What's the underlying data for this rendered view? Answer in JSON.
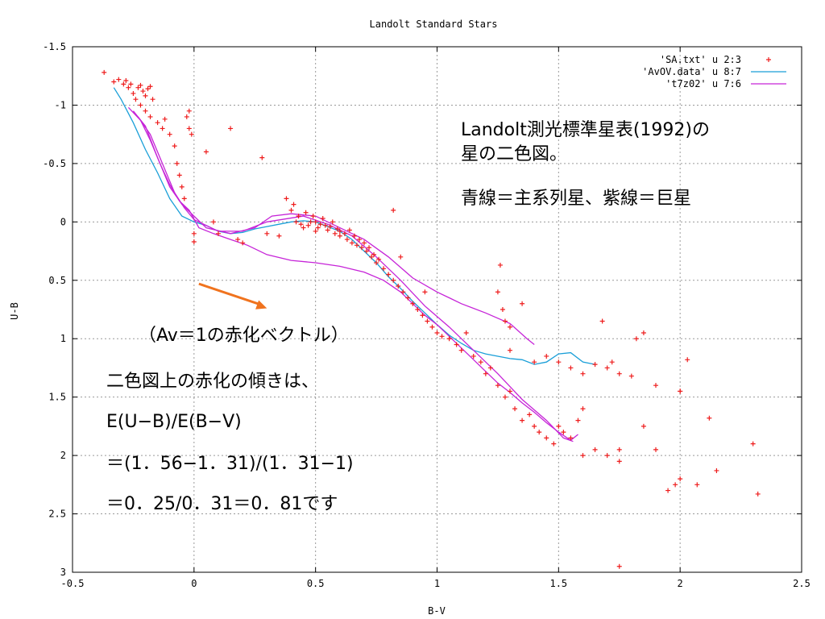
{
  "chart_data": {
    "type": "scatter",
    "title": "Landolt Standard Stars",
    "xlabel": "B-V",
    "ylabel": "U-B",
    "xlim": [
      -0.5,
      2.5
    ],
    "ylim": [
      3,
      -1.5
    ],
    "y_inverted": true,
    "xticks": [
      -0.5,
      0,
      0.5,
      1,
      1.5,
      2,
      2.5
    ],
    "yticks": [
      -1.5,
      -1,
      -0.5,
      0,
      0.5,
      1,
      1.5,
      2,
      2.5,
      3
    ],
    "xtick_labels": [
      "-0.5",
      "0",
      "0.5",
      "1",
      "1.5",
      "2",
      "2.5"
    ],
    "ytick_labels": [
      "-1.5",
      "-1",
      "-0.5",
      "0",
      "0.5",
      "1",
      "1.5",
      "2",
      "2.5",
      "3"
    ],
    "grid": true,
    "legend_position": "top-right",
    "series": [
      {
        "name": "'SA.txt' u 2:3",
        "type": "scatter",
        "color": "#ee1c1c",
        "marker": "plus",
        "points": [
          [
            -0.37,
            -1.28
          ],
          [
            -0.33,
            -1.2
          ],
          [
            -0.31,
            -1.22
          ],
          [
            -0.29,
            -1.18
          ],
          [
            -0.28,
            -1.21
          ],
          [
            -0.27,
            -1.15
          ],
          [
            -0.26,
            -1.18
          ],
          [
            -0.25,
            -1.1
          ],
          [
            -0.24,
            -1.05
          ],
          [
            -0.23,
            -1.15
          ],
          [
            -0.22,
            -1.17
          ],
          [
            -0.21,
            -1.12
          ],
          [
            -0.2,
            -1.08
          ],
          [
            -0.19,
            -1.14
          ],
          [
            -0.18,
            -1.16
          ],
          [
            -0.22,
            -1.0
          ],
          [
            -0.2,
            -0.95
          ],
          [
            -0.18,
            -0.9
          ],
          [
            -0.17,
            -1.05
          ],
          [
            -0.15,
            -0.85
          ],
          [
            -0.13,
            -0.8
          ],
          [
            -0.12,
            -0.88
          ],
          [
            -0.1,
            -0.75
          ],
          [
            -0.08,
            -0.65
          ],
          [
            -0.07,
            -0.5
          ],
          [
            -0.06,
            -0.4
          ],
          [
            -0.05,
            -0.3
          ],
          [
            -0.04,
            -0.2
          ],
          [
            -0.03,
            -0.9
          ],
          [
            -0.02,
            -0.95
          ],
          [
            -0.02,
            -0.8
          ],
          [
            -0.01,
            -0.75
          ],
          [
            0.0,
            0.1
          ],
          [
            0.0,
            0.17
          ],
          [
            0.05,
            -0.6
          ],
          [
            0.08,
            0.0
          ],
          [
            0.1,
            0.1
          ],
          [
            0.15,
            -0.8
          ],
          [
            0.18,
            0.15
          ],
          [
            0.2,
            0.18
          ],
          [
            0.28,
            -0.55
          ],
          [
            0.3,
            0.1
          ],
          [
            0.35,
            0.12
          ],
          [
            0.38,
            -0.2
          ],
          [
            0.4,
            -0.1
          ],
          [
            0.41,
            -0.15
          ],
          [
            0.42,
            0.0
          ],
          [
            0.43,
            -0.05
          ],
          [
            0.44,
            0.02
          ],
          [
            0.45,
            0.05
          ],
          [
            0.46,
            -0.08
          ],
          [
            0.47,
            0.03
          ],
          [
            0.48,
            0.0
          ],
          [
            0.49,
            -0.05
          ],
          [
            0.5,
            0.0
          ],
          [
            0.5,
            0.08
          ],
          [
            0.51,
            0.05
          ],
          [
            0.52,
            0.02
          ],
          [
            0.53,
            -0.03
          ],
          [
            0.54,
            0.03
          ],
          [
            0.55,
            0.07
          ],
          [
            0.56,
            0.04
          ],
          [
            0.57,
            0.0
          ],
          [
            0.58,
            0.1
          ],
          [
            0.59,
            0.06
          ],
          [
            0.6,
            0.12
          ],
          [
            0.6,
            0.08
          ],
          [
            0.62,
            0.1
          ],
          [
            0.63,
            0.15
          ],
          [
            0.64,
            0.07
          ],
          [
            0.65,
            0.18
          ],
          [
            0.66,
            0.12
          ],
          [
            0.67,
            0.2
          ],
          [
            0.68,
            0.15
          ],
          [
            0.69,
            0.22
          ],
          [
            0.7,
            0.18
          ],
          [
            0.71,
            0.25
          ],
          [
            0.72,
            0.22
          ],
          [
            0.73,
            0.3
          ],
          [
            0.74,
            0.28
          ],
          [
            0.75,
            0.35
          ],
          [
            0.76,
            0.32
          ],
          [
            0.78,
            0.4
          ],
          [
            0.8,
            0.45
          ],
          [
            0.82,
            0.5
          ],
          [
            0.82,
            -0.1
          ],
          [
            0.84,
            0.55
          ],
          [
            0.85,
            0.3
          ],
          [
            0.86,
            0.6
          ],
          [
            0.88,
            0.65
          ],
          [
            0.9,
            0.7
          ],
          [
            0.92,
            0.75
          ],
          [
            0.94,
            0.8
          ],
          [
            0.95,
            0.6
          ],
          [
            0.96,
            0.85
          ],
          [
            0.98,
            0.9
          ],
          [
            1.0,
            0.95
          ],
          [
            1.02,
            0.98
          ],
          [
            1.05,
            1.0
          ],
          [
            1.08,
            1.05
          ],
          [
            1.1,
            1.1
          ],
          [
            1.12,
            0.95
          ],
          [
            1.15,
            1.15
          ],
          [
            1.18,
            1.2
          ],
          [
            1.2,
            1.3
          ],
          [
            1.22,
            1.25
          ],
          [
            1.25,
            1.4
          ],
          [
            1.28,
            1.5
          ],
          [
            1.3,
            1.45
          ],
          [
            1.32,
            1.6
          ],
          [
            1.35,
            1.7
          ],
          [
            1.38,
            1.65
          ],
          [
            1.4,
            1.75
          ],
          [
            1.42,
            1.8
          ],
          [
            1.45,
            1.85
          ],
          [
            1.48,
            1.9
          ],
          [
            1.5,
            1.75
          ],
          [
            1.52,
            1.8
          ],
          [
            1.55,
            1.85
          ],
          [
            1.58,
            1.7
          ],
          [
            1.6,
            1.6
          ],
          [
            1.26,
            0.37
          ],
          [
            1.25,
            0.6
          ],
          [
            1.27,
            0.75
          ],
          [
            1.28,
            0.85
          ],
          [
            1.3,
            0.9
          ],
          [
            1.3,
            1.1
          ],
          [
            1.35,
            0.7
          ],
          [
            1.4,
            1.2
          ],
          [
            1.45,
            1.15
          ],
          [
            1.5,
            1.2
          ],
          [
            1.55,
            1.25
          ],
          [
            1.6,
            1.3
          ],
          [
            1.65,
            1.22
          ],
          [
            1.68,
            0.85
          ],
          [
            1.7,
            1.25
          ],
          [
            1.72,
            1.2
          ],
          [
            1.75,
            1.3
          ],
          [
            1.75,
            1.95
          ],
          [
            1.75,
            2.05
          ],
          [
            1.8,
            1.32
          ],
          [
            1.82,
            1.0
          ],
          [
            1.85,
            0.95
          ],
          [
            1.9,
            1.4
          ],
          [
            1.9,
            1.95
          ],
          [
            1.95,
            2.3
          ],
          [
            1.98,
            2.25
          ],
          [
            2.0,
            1.45
          ],
          [
            2.0,
            2.2
          ],
          [
            2.03,
            1.18
          ],
          [
            2.07,
            2.25
          ],
          [
            2.12,
            1.68
          ],
          [
            2.15,
            2.13
          ],
          [
            2.3,
            1.9
          ],
          [
            2.32,
            2.33
          ],
          [
            1.75,
            2.95
          ],
          [
            1.6,
            2.0
          ],
          [
            1.65,
            1.95
          ],
          [
            1.7,
            2.0
          ],
          [
            1.85,
            1.75
          ],
          [
            2.0,
            1.45
          ]
        ]
      },
      {
        "name": "'AvOV.data' u 8:7",
        "type": "line",
        "color": "#1a9fd8",
        "points": [
          [
            -0.33,
            -1.15
          ],
          [
            -0.3,
            -1.05
          ],
          [
            -0.25,
            -0.85
          ],
          [
            -0.2,
            -0.62
          ],
          [
            -0.15,
            -0.42
          ],
          [
            -0.1,
            -0.2
          ],
          [
            -0.05,
            -0.05
          ],
          [
            0.0,
            0.0
          ],
          [
            0.05,
            0.03
          ],
          [
            0.1,
            0.08
          ],
          [
            0.15,
            0.1
          ],
          [
            0.2,
            0.09
          ],
          [
            0.25,
            0.06
          ],
          [
            0.3,
            0.04
          ],
          [
            0.35,
            0.02
          ],
          [
            0.4,
            0.0
          ],
          [
            0.45,
            -0.01
          ],
          [
            0.5,
            0.0
          ],
          [
            0.55,
            0.04
          ],
          [
            0.6,
            0.08
          ],
          [
            0.65,
            0.15
          ],
          [
            0.7,
            0.25
          ],
          [
            0.75,
            0.35
          ],
          [
            0.8,
            0.47
          ],
          [
            0.85,
            0.57
          ],
          [
            0.9,
            0.68
          ],
          [
            0.95,
            0.78
          ],
          [
            1.0,
            0.88
          ],
          [
            1.05,
            0.97
          ],
          [
            1.1,
            1.04
          ],
          [
            1.15,
            1.1
          ],
          [
            1.2,
            1.13
          ],
          [
            1.25,
            1.15
          ],
          [
            1.3,
            1.17
          ],
          [
            1.35,
            1.18
          ],
          [
            1.4,
            1.22
          ],
          [
            1.45,
            1.2
          ],
          [
            1.5,
            1.13
          ],
          [
            1.55,
            1.12
          ],
          [
            1.6,
            1.2
          ],
          [
            1.65,
            1.22
          ]
        ]
      },
      {
        "name": "'t7z02' u 7:6",
        "type": "line",
        "color": "#c624d8",
        "points": [
          [
            -0.27,
            -0.98
          ],
          [
            -0.22,
            -0.87
          ],
          [
            -0.18,
            -0.7
          ],
          [
            -0.14,
            -0.5
          ],
          [
            -0.1,
            -0.32
          ],
          [
            -0.06,
            -0.18
          ],
          [
            -0.02,
            -0.1
          ],
          [
            0.02,
            0.05
          ],
          [
            0.08,
            0.1
          ],
          [
            0.15,
            0.15
          ],
          [
            0.22,
            0.2
          ],
          [
            0.3,
            0.28
          ],
          [
            0.4,
            0.33
          ],
          [
            0.5,
            0.35
          ],
          [
            0.6,
            0.38
          ],
          [
            0.7,
            0.43
          ],
          [
            0.78,
            0.5
          ],
          [
            0.85,
            0.6
          ],
          [
            0.9,
            0.7
          ],
          [
            0.95,
            0.8
          ],
          [
            1.0,
            0.88
          ],
          [
            1.05,
            0.98
          ],
          [
            1.1,
            1.08
          ],
          [
            1.15,
            1.18
          ],
          [
            1.2,
            1.28
          ],
          [
            1.25,
            1.38
          ],
          [
            1.3,
            1.46
          ],
          [
            1.35,
            1.55
          ],
          [
            1.4,
            1.63
          ],
          [
            1.45,
            1.72
          ],
          [
            1.5,
            1.8
          ],
          [
            1.55,
            1.87
          ],
          [
            1.58,
            1.82
          ]
        ]
      },
      {
        "name": "",
        "type": "line",
        "color": "#c624d8",
        "points": [
          [
            -0.25,
            -0.95
          ],
          [
            -0.2,
            -0.82
          ],
          [
            -0.15,
            -0.55
          ],
          [
            -0.1,
            -0.3
          ],
          [
            -0.05,
            -0.15
          ],
          [
            0.0,
            -0.05
          ],
          [
            0.05,
            0.05
          ],
          [
            0.15,
            0.1
          ],
          [
            0.25,
            0.05
          ],
          [
            0.32,
            -0.05
          ],
          [
            0.4,
            -0.07
          ],
          [
            0.5,
            -0.05
          ],
          [
            0.6,
            0.05
          ],
          [
            0.7,
            0.15
          ],
          [
            0.8,
            0.3
          ],
          [
            0.9,
            0.48
          ],
          [
            1.0,
            0.6
          ],
          [
            1.05,
            0.65
          ],
          [
            1.1,
            0.7
          ],
          [
            1.2,
            0.78
          ],
          [
            1.3,
            0.87
          ],
          [
            1.37,
            1.0
          ],
          [
            1.4,
            1.05
          ]
        ]
      },
      {
        "name": "",
        "type": "line",
        "color": "#c624d8",
        "points": [
          [
            -0.23,
            -0.9
          ],
          [
            -0.18,
            -0.75
          ],
          [
            -0.12,
            -0.45
          ],
          [
            -0.08,
            -0.25
          ],
          [
            -0.04,
            -0.12
          ],
          [
            0.0,
            -0.02
          ],
          [
            0.1,
            0.08
          ],
          [
            0.2,
            0.08
          ],
          [
            0.3,
            0.0
          ],
          [
            0.45,
            -0.05
          ],
          [
            0.55,
            0.02
          ],
          [
            0.65,
            0.12
          ],
          [
            0.75,
            0.3
          ],
          [
            0.85,
            0.5
          ],
          [
            0.95,
            0.72
          ],
          [
            1.05,
            0.9
          ],
          [
            1.15,
            1.1
          ],
          [
            1.25,
            1.3
          ],
          [
            1.35,
            1.52
          ],
          [
            1.45,
            1.7
          ],
          [
            1.52,
            1.85
          ],
          [
            1.56,
            1.88
          ]
        ]
      }
    ],
    "annotation_arrow": {
      "from": [
        0.02,
        0.53
      ],
      "to": [
        0.3,
        0.74
      ],
      "color": "#f0731e"
    }
  },
  "notes": {
    "note1": "Landolt測光標準星表(1992)の",
    "note2": "星の二色図。",
    "note3": "青線＝主系列星、紫線＝巨星",
    "arrow_label": "（Av＝1の赤化ベクトル）",
    "slope1": "二色図上の赤化の傾きは、",
    "slope2": "E(U−B)/E(B−V)",
    "slope3": "＝(1．56−1．31)/(1．31−1)",
    "slope4": "＝0．25/0．31＝0．81です"
  }
}
